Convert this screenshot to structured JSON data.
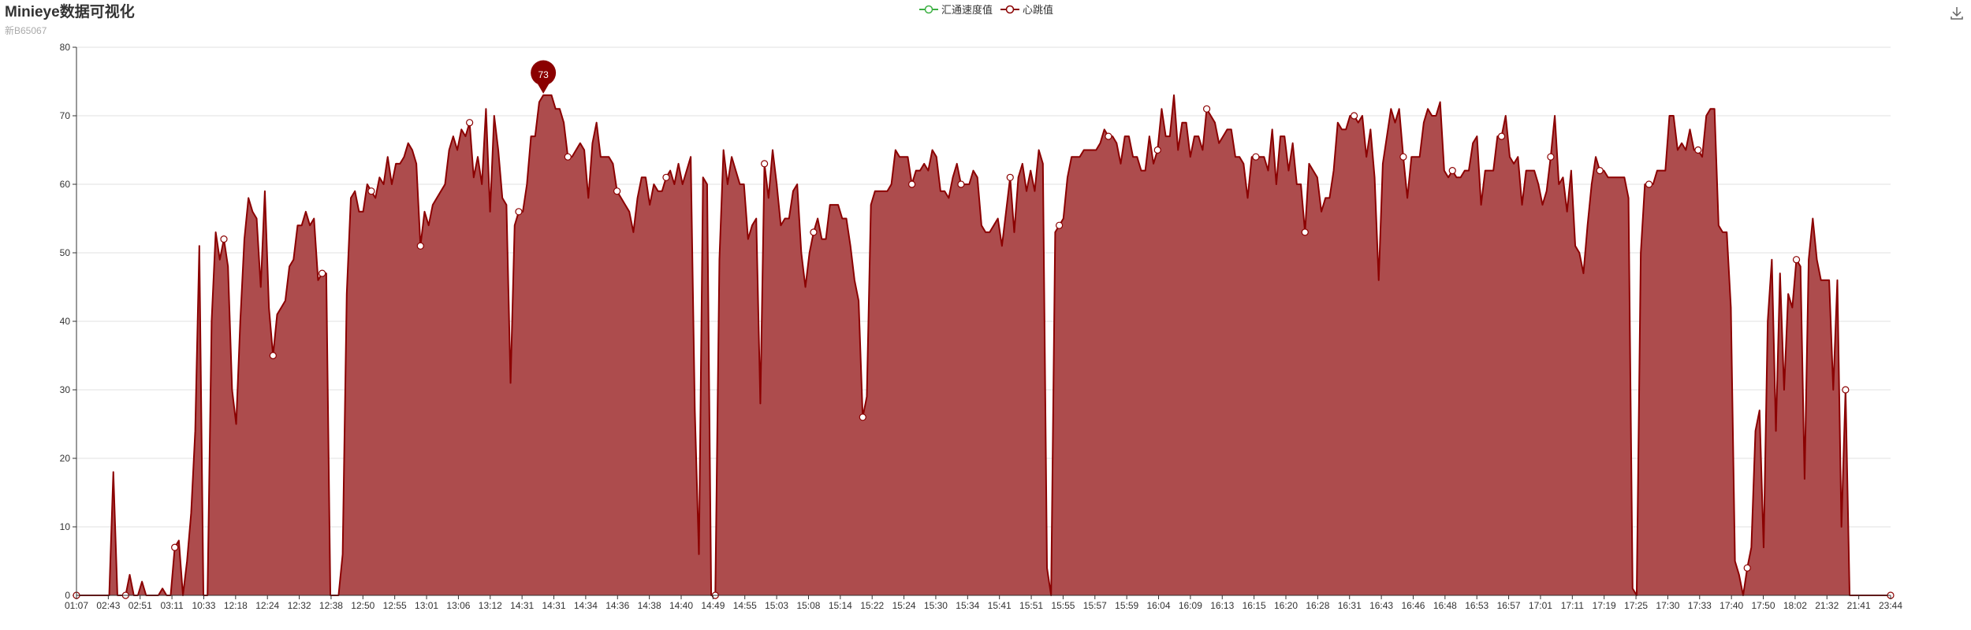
{
  "title": "Minieye数据可视化",
  "subtitle": "新B65067",
  "toolbox": {
    "download_icon": "download-icon"
  },
  "colors": {
    "speed": "#3cb043",
    "heart": "#8b0000",
    "area": "#ad4c4d",
    "grid": "#e0e0e0",
    "axis": "#333333"
  },
  "chart_data": {
    "type": "area",
    "title": "Minieye数据可视化",
    "subtitle": "新B65067",
    "legend": [
      "汇通速度值",
      "心跳值"
    ],
    "legend_position": "top-center",
    "grid": true,
    "ylim": [
      0,
      80
    ],
    "yticks": [
      0,
      10,
      20,
      30,
      40,
      50,
      60,
      70,
      80
    ],
    "xticks": [
      "01:07",
      "02:43",
      "02:51",
      "03:11",
      "10:33",
      "12:18",
      "12:24",
      "12:32",
      "12:38",
      "12:50",
      "12:55",
      "13:01",
      "13:06",
      "13:12",
      "14:31",
      "14:31",
      "14:34",
      "14:36",
      "14:38",
      "14:40",
      "14:49",
      "14:55",
      "15:03",
      "15:08",
      "15:14",
      "15:22",
      "15:24",
      "15:30",
      "15:34",
      "15:41",
      "15:51",
      "15:55",
      "15:57",
      "15:59",
      "16:04",
      "16:09",
      "16:13",
      "16:15",
      "16:20",
      "16:28",
      "16:31",
      "16:43",
      "16:46",
      "16:48",
      "16:53",
      "16:57",
      "17:01",
      "17:11",
      "17:19",
      "17:25",
      "17:30",
      "17:33",
      "17:40",
      "17:50",
      "18:02",
      "21:32",
      "21:41",
      "23:44"
    ],
    "series": [
      {
        "name": "汇通速度值",
        "values": []
      },
      {
        "name": "心跳值",
        "values": [
          0,
          0,
          0,
          0,
          0,
          0,
          0,
          0,
          0,
          18,
          0,
          0,
          0,
          3,
          0,
          0,
          2,
          0,
          0,
          0,
          0,
          1,
          0,
          0,
          7,
          8,
          0,
          5,
          12,
          24,
          51,
          0,
          0,
          40,
          53,
          49,
          52,
          48,
          30,
          25,
          40,
          52,
          58,
          56,
          55,
          45,
          59,
          42,
          35,
          41,
          42,
          43,
          48,
          49,
          54,
          54,
          56,
          54,
          55,
          46,
          47,
          47,
          0,
          0,
          0,
          6,
          44,
          58,
          59,
          56,
          56,
          60,
          59,
          58,
          61,
          60,
          64,
          60,
          63,
          63,
          64,
          66,
          65,
          63,
          51,
          56,
          54,
          57,
          58,
          59,
          60,
          65,
          67,
          65,
          68,
          67,
          69,
          61,
          64,
          60,
          71,
          56,
          70,
          65,
          58,
          57,
          31,
          54,
          56,
          56,
          60,
          67,
          67,
          72,
          73,
          73,
          73,
          71,
          71,
          69,
          64,
          64,
          65,
          66,
          65,
          58,
          66,
          69,
          64,
          64,
          64,
          63,
          59,
          58,
          57,
          56,
          53,
          58,
          61,
          61,
          57,
          60,
          59,
          59,
          61,
          62,
          60,
          63,
          60,
          62,
          64,
          27,
          6,
          61,
          60,
          0,
          0,
          49,
          65,
          60,
          64,
          62,
          60,
          60,
          52,
          54,
          55,
          28,
          63,
          58,
          65,
          60,
          54,
          55,
          55,
          59,
          60,
          50,
          45,
          50,
          53,
          55,
          52,
          52,
          57,
          57,
          57,
          55,
          55,
          51,
          46,
          43,
          26,
          29,
          57,
          59,
          59,
          59,
          59,
          60,
          65,
          64,
          64,
          64,
          60,
          62,
          62,
          63,
          62,
          65,
          64,
          59,
          59,
          58,
          61,
          63,
          60,
          60,
          60,
          62,
          61,
          54,
          53,
          53,
          54,
          55,
          51,
          56,
          61,
          53,
          61,
          63,
          59,
          62,
          59,
          65,
          63,
          4,
          0,
          53,
          54,
          55,
          61,
          64,
          64,
          64,
          65,
          65,
          65,
          65,
          66,
          68,
          67,
          67,
          66,
          63,
          67,
          67,
          64,
          64,
          62,
          62,
          67,
          63,
          65,
          71,
          67,
          67,
          73,
          65,
          69,
          69,
          64,
          67,
          67,
          65,
          71,
          70,
          69,
          66,
          67,
          68,
          68,
          64,
          64,
          63,
          58,
          64,
          64,
          64,
          64,
          62,
          68,
          60,
          67,
          67,
          62,
          66,
          60,
          60,
          53,
          63,
          62,
          61,
          56,
          58,
          58,
          62,
          69,
          68,
          68,
          70,
          70,
          69,
          70,
          64,
          68,
          61,
          46,
          63,
          67,
          71,
          69,
          71,
          64,
          58,
          64,
          64,
          64,
          69,
          71,
          70,
          70,
          72,
          62,
          61,
          62,
          61,
          61,
          62,
          62,
          66,
          67,
          57,
          62,
          62,
          62,
          67,
          67,
          70,
          64,
          63,
          64,
          57,
          62,
          62,
          62,
          60,
          57,
          59,
          64,
          70,
          60,
          61,
          56,
          62,
          51,
          50,
          47,
          54,
          60,
          64,
          62,
          62,
          61,
          61,
          61,
          61,
          61,
          58,
          1,
          0,
          50,
          60,
          60,
          60,
          62,
          62,
          62,
          70,
          70,
          65,
          66,
          65,
          68,
          65,
          65,
          64,
          70,
          71,
          71,
          54,
          53,
          53,
          42,
          5,
          3,
          0,
          4,
          7,
          24,
          27,
          7,
          40,
          49,
          24,
          47,
          30,
          44,
          42,
          49,
          48,
          17,
          49,
          55,
          49,
          46,
          46,
          46,
          30,
          46,
          10,
          30,
          0,
          0,
          0,
          0,
          0,
          0,
          0,
          0,
          0,
          0,
          0
        ]
      }
    ],
    "annotation": {
      "type": "max-pin",
      "value": 73
    }
  }
}
